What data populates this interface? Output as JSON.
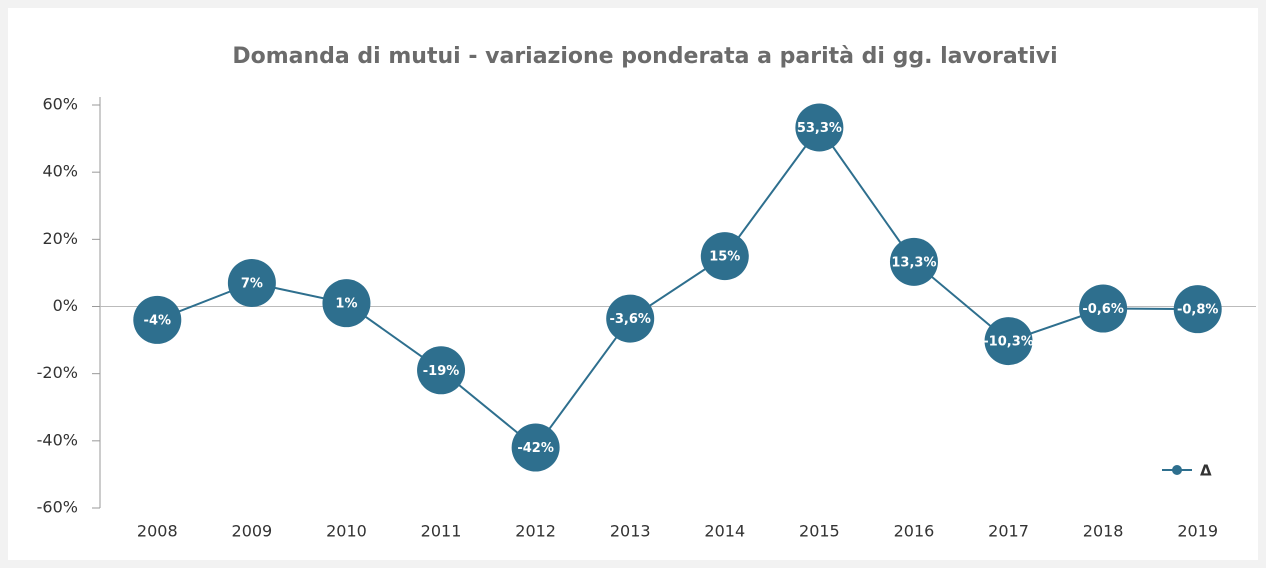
{
  "chart_data": {
    "type": "line",
    "title": "Domanda di mutui - variazione ponderata a parità di gg. lavorativi",
    "categories": [
      "2008",
      "2009",
      "2010",
      "2011",
      "2012",
      "2013",
      "2014",
      "2015",
      "2016",
      "2017",
      "2018",
      "2019"
    ],
    "series": [
      {
        "name": "Δ",
        "color": "#2e6f8e",
        "values": [
          -4,
          7,
          1,
          -19,
          -42,
          -3.6,
          15,
          53.3,
          13.3,
          -10.3,
          -0.6,
          -0.8
        ],
        "value_labels": [
          "-4%",
          "7%",
          "1%",
          "-19%",
          "-42%",
          "-3,6%",
          "15%",
          "53,3%",
          "13,3%",
          "-10,3%",
          "-0,6%",
          "-0,8%"
        ]
      }
    ],
    "ylim": [
      -60,
      60
    ],
    "yticks": [
      {
        "value": -60,
        "label": "-60%"
      },
      {
        "value": -40,
        "label": "-40%"
      },
      {
        "value": -20,
        "label": "-20%"
      },
      {
        "value": 0,
        "label": "0%"
      },
      {
        "value": 20,
        "label": "20%"
      },
      {
        "value": 40,
        "label": "40%"
      },
      {
        "value": 60,
        "label": "60%"
      }
    ],
    "legend": "lower right"
  }
}
